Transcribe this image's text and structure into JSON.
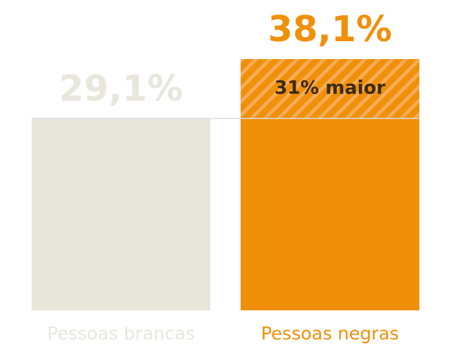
{
  "chart_data": {
    "type": "bar",
    "categories": [
      "Pessoas brancas",
      "Pessoas negras"
    ],
    "values": [
      29.1,
      38.1
    ],
    "value_labels": [
      "29,1%",
      "38,1%"
    ],
    "colors": [
      "#e9e6dc",
      "#f0900a"
    ],
    "annotation": "31% maior"
  }
}
